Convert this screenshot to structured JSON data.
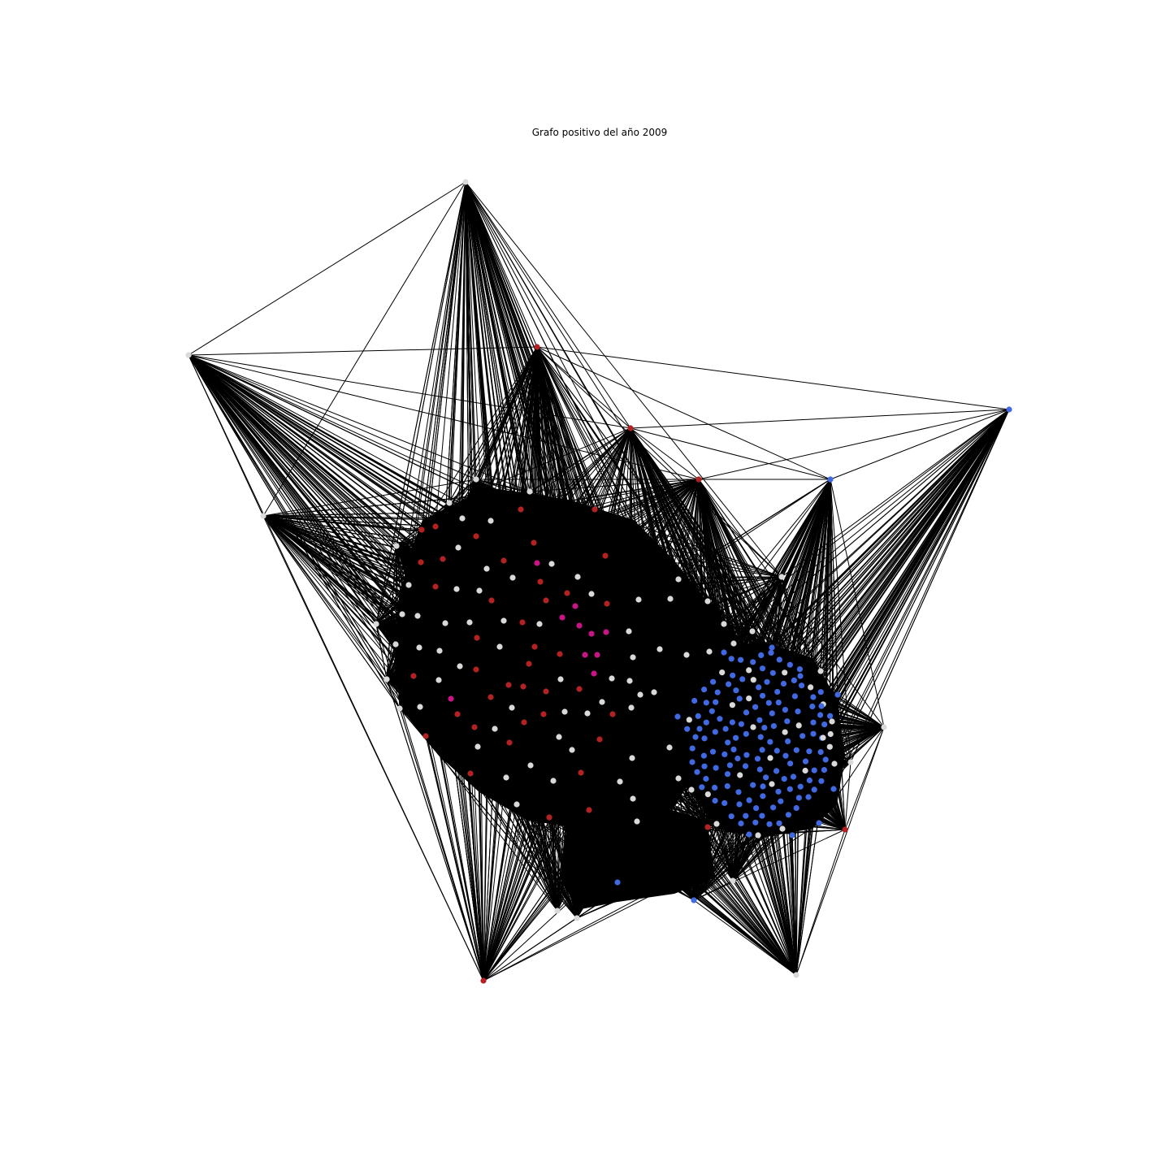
{
  "figure": {
    "title": "Grafo positivo del año 2009"
  },
  "legend": {
    "node_colors": {
      "red": "#b22222",
      "blue": "#4169e1",
      "white": "#d9d9d9",
      "magenta": "#c71585"
    },
    "edge_color": "#000000",
    "background": "#ffffff"
  }
}
